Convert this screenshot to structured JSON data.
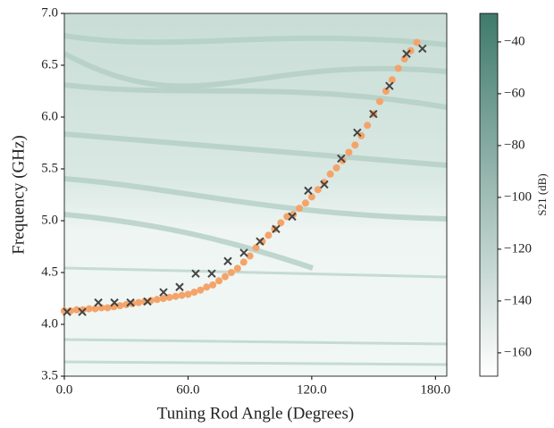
{
  "chart_data": {
    "type": "scatter",
    "x_label": "Tuning Rod Angle (Degrees)",
    "y_label": "Frequency (GHz)",
    "xlim": [
      0,
      185.5
    ],
    "ylim": [
      3.5,
      7.0
    ],
    "xticks": [
      {
        "value": 0,
        "label": "0.0"
      },
      {
        "value": 60,
        "label": "60.0"
      },
      {
        "value": 120,
        "label": "120.0"
      },
      {
        "value": 180,
        "label": "180.0"
      }
    ],
    "yticks": [
      3.5,
      {
        "value": 4,
        "label": "4.0"
      },
      4.5,
      {
        "value": 5,
        "label": "5.0"
      },
      5.5,
      {
        "value": 6,
        "label": "6.0"
      },
      6.5,
      {
        "value": 7,
        "label": "7.0"
      }
    ],
    "colorbar": {
      "label": "S21 (dB)",
      "lim": [
        -169,
        -29
      ],
      "ticks": [
        {
          "value": -40,
          "label": "−40"
        },
        {
          "value": -60,
          "label": "−60"
        },
        {
          "value": -80,
          "label": "−80"
        },
        {
          "value": -100,
          "label": "−100"
        },
        {
          "value": -120,
          "label": "−120"
        },
        {
          "value": -140,
          "label": "−140"
        },
        {
          "value": -160,
          "label": "−160"
        }
      ],
      "colors": [
        "#ffffff",
        "#3f7a6b"
      ]
    },
    "series": [
      {
        "color": "#f4a46a",
        "marker": "o",
        "x": [
          0,
          3,
          6,
          9,
          12,
          15,
          18,
          21,
          24,
          27,
          30,
          33,
          36,
          39,
          42,
          45,
          48,
          51,
          54,
          57,
          60,
          63,
          66,
          69,
          72,
          75,
          78,
          81,
          84,
          87,
          90,
          93,
          96,
          99,
          102,
          105,
          108,
          111,
          114,
          117,
          120,
          123,
          126,
          129,
          132,
          135,
          138,
          141,
          144,
          147,
          150,
          153,
          156,
          159,
          162,
          165,
          168,
          171
        ],
        "values": [
          4.13,
          4.13,
          4.14,
          4.14,
          4.15,
          4.15,
          4.16,
          4.16,
          4.17,
          4.18,
          4.19,
          4.2,
          4.21,
          4.22,
          4.23,
          4.24,
          4.25,
          4.26,
          4.27,
          4.28,
          4.29,
          4.31,
          4.33,
          4.36,
          4.38,
          4.42,
          4.46,
          4.5,
          4.54,
          4.6,
          4.66,
          4.74,
          4.8,
          4.86,
          4.92,
          4.98,
          5.04,
          5.06,
          5.12,
          5.17,
          5.23,
          5.3,
          5.37,
          5.45,
          5.51,
          5.58,
          5.66,
          5.73,
          5.82,
          5.92,
          6.03,
          6.15,
          6.25,
          6.36,
          6.47,
          6.56,
          6.64,
          6.72
        ]
      },
      {
        "color": "#444444",
        "marker": "x",
        "x": [
          1.3,
          8.7,
          16.5,
          24.3,
          32.1,
          40.3,
          48.1,
          55.9,
          63.7,
          71.5,
          79.3,
          87.1,
          94.9,
          102.7,
          110.5,
          118.3,
          126.1,
          134.3,
          142.1,
          149.9,
          157.7,
          166,
          173.7
        ],
        "values": [
          4.12,
          4.12,
          4.21,
          4.21,
          4.21,
          4.22,
          4.31,
          4.36,
          4.49,
          4.49,
          4.61,
          4.69,
          4.8,
          4.92,
          5.04,
          5.29,
          5.35,
          5.6,
          5.85,
          6.03,
          6.3,
          6.61,
          6.66
        ]
      }
    ]
  }
}
